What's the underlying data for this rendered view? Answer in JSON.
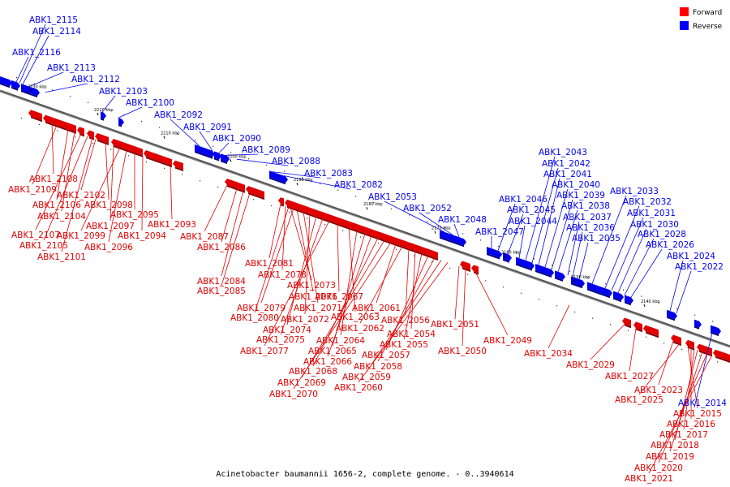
{
  "caption": "Acinetobacter baumannii 1656-2, complete genome. - 0..3940614",
  "legend": [
    {
      "label": "Forward",
      "color": "#ff0000"
    },
    {
      "label": "Reverse",
      "color": "#0000ff"
    }
  ],
  "ticks": [
    "2230 kbp",
    "2220 kbp",
    "2210 kbp",
    "2200 kbp",
    "2190 kbp",
    "2180 kbp",
    "2170 kbp",
    "2160 kbp",
    "2150 kbp",
    "2140 kbp"
  ],
  "reverse_labels": [
    "ABK1_2115",
    "ABK1_2114",
    "ABK1_2116",
    "ABK1_2113",
    "ABK1_2112",
    "ABK1_2103",
    "ABK1_2100",
    "ABK1_2092",
    "ABK1_2091",
    "ABK1_2090",
    "ABK1_2089",
    "ABK1_2088",
    "ABK1_2083",
    "ABK1_2082",
    "ABK1_2053",
    "ABK1_2052",
    "ABK1_2048",
    "ABK1_2047",
    "ABK1_2046",
    "ABK1_2045",
    "ABK1_2044",
    "ABK1_2043",
    "ABK1_2042",
    "ABK1_2041",
    "ABK1_2040",
    "ABK1_2039",
    "ABK1_2038",
    "ABK1_2037",
    "ABK1_2036",
    "ABK1_2035",
    "ABK1_2033",
    "ABK1_2032",
    "ABK1_2031",
    "ABK1_2030",
    "ABK1_2028",
    "ABK1_2026",
    "ABK1_2024",
    "ABK1_2022",
    "ABK1_2014"
  ],
  "forward_labels": [
    "ABK1_2108",
    "ABK1_2109",
    "ABK1_2106",
    "ABK1_2104",
    "ABK1_2107",
    "ABK1_2105",
    "ABK1_2101",
    "ABK1_2102",
    "ABK1_2098",
    "ABK1_2097",
    "ABK1_2099",
    "ABK1_2096",
    "ABK1_2095",
    "ABK1_2094",
    "ABK1_2093",
    "ABK1_2087",
    "ABK1_2086",
    "ABK1_2084",
    "ABK1_2085",
    "ABK1_2081",
    "ABK1_2078",
    "ABK1_2073",
    "ABK1_2076",
    "ABK1_2079",
    "ABK1_2071",
    "ABK1_2080",
    "ABK1_2072",
    "ABK1_2074",
    "ABK1_2075",
    "ABK1_2077",
    "ABK1_2067",
    "ABK1_2063",
    "ABK1_2064",
    "ABK1_2065",
    "ABK1_2066",
    "ABK1_2068",
    "ABK1_2069",
    "ABK1_2070",
    "ABK1_2061",
    "ABK1_2062",
    "ABK1_2056",
    "ABK1_2054",
    "ABK1_2055",
    "ABK1_2057",
    "ABK1_2058",
    "ABK1_2059",
    "ABK1_2060",
    "ABK1_2051",
    "ABK1_2050",
    "ABK1_2049",
    "ABK1_2034",
    "ABK1_2029",
    "ABK1_2027",
    "ABK1_2023",
    "ABK1_2025",
    "ABK1_2015",
    "ABK1_2016",
    "ABK1_2017",
    "ABK1_2018",
    "ABK1_2019",
    "ABK1_2020",
    "ABK1_2021"
  ]
}
